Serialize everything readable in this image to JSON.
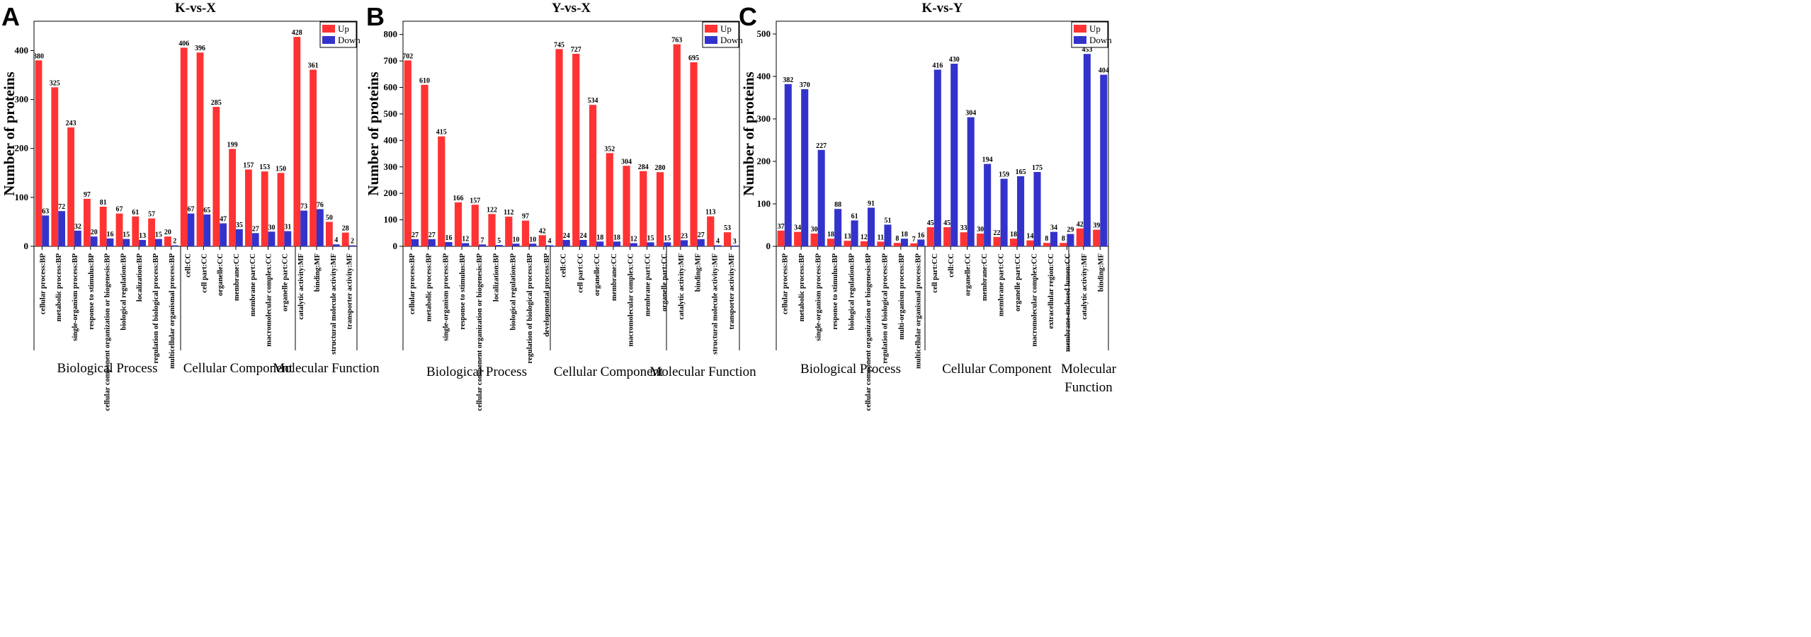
{
  "chart_data": [
    {
      "panel": "A",
      "type": "bar",
      "title": "K-vs-X",
      "ylabel": "Number of proteins",
      "ylim": [
        0,
        460
      ],
      "yticks": [
        0,
        100,
        200,
        300,
        400
      ],
      "legend": {
        "placement": "top-right",
        "entries": [
          {
            "name": "Up",
            "color": "#ff3333"
          },
          {
            "name": "Down",
            "color": "#3333cc"
          }
        ]
      },
      "categories": [
        "cellular process:BP",
        "metabolic process:BP",
        "single-organism process:BP",
        "response to stimulus:BP",
        "cellular component organization or biogenesis:BP",
        "biological regulation:BP",
        "localization:BP",
        "regulation of biological process:BP",
        "multicellular organismal process:BP",
        "cell:CC",
        "cell part:CC",
        "organelle:CC",
        "membrane:CC",
        "membrane part:CC",
        "macromolecular complex:CC",
        "organelle part:CC",
        "catalytic activity:MF",
        "binding:MF",
        "structural molecule activity:MF",
        "transporter activity:MF"
      ],
      "series": [
        {
          "name": "Up",
          "color": "#ff3333",
          "values": [
            380,
            325,
            243,
            97,
            81,
            67,
            61,
            57,
            20,
            406,
            396,
            285,
            199,
            157,
            153,
            150,
            428,
            361,
            50,
            28
          ]
        },
        {
          "name": "Down",
          "color": "#3333cc",
          "values": [
            63,
            72,
            32,
            20,
            16,
            15,
            13,
            15,
            2,
            67,
            65,
            47,
            35,
            27,
            30,
            31,
            73,
            76,
            4,
            2
          ]
        }
      ],
      "groups": [
        {
          "label": "Biological Process",
          "start": 0,
          "end": 8
        },
        {
          "label": "Cellular Component",
          "start": 9,
          "end": 15
        },
        {
          "label": "Molecular Function",
          "start": 16,
          "end": 19
        }
      ]
    },
    {
      "panel": "B",
      "type": "bar",
      "title": "Y-vs-X",
      "ylabel": "Number of proteins",
      "ylim": [
        0,
        850
      ],
      "yticks": [
        0,
        100,
        200,
        300,
        400,
        500,
        600,
        700,
        800
      ],
      "legend": {
        "placement": "top-right",
        "entries": [
          {
            "name": "Up",
            "color": "#ff3333"
          },
          {
            "name": "Down",
            "color": "#3333cc"
          }
        ]
      },
      "categories": [
        "cellular process:BP",
        "metabolic process:BP",
        "single-organism process:BP",
        "response to stimulus:BP",
        "cellular component organization or biogenesis:BP",
        "localization:BP",
        "biological regulation:BP",
        "regulation of biological process:BP",
        "developmental process:BP",
        "cell:CC",
        "cell part:CC",
        "organelle:CC",
        "membrane:CC",
        "macromolecular complex:CC",
        "membrane part:CC",
        "organelle part:CC",
        "catalytic activity:MF",
        "binding:MF",
        "structural molecule activity:MF",
        "transporter activity:MF"
      ],
      "series": [
        {
          "name": "Up",
          "color": "#ff3333",
          "values": [
            702,
            610,
            415,
            166,
            157,
            122,
            112,
            97,
            42,
            745,
            727,
            534,
            352,
            304,
            284,
            280,
            763,
            695,
            113,
            53
          ]
        },
        {
          "name": "Down",
          "color": "#3333cc",
          "values": [
            27,
            27,
            16,
            12,
            7,
            5,
            10,
            10,
            4,
            24,
            24,
            18,
            18,
            12,
            15,
            15,
            23,
            27,
            4,
            3
          ]
        }
      ],
      "groups": [
        {
          "label": "Biological Process",
          "start": 0,
          "end": 8
        },
        {
          "label": "Cellular Component",
          "start": 9,
          "end": 15
        },
        {
          "label": "Molecular Function",
          "start": 16,
          "end": 19
        }
      ]
    },
    {
      "panel": "C",
      "type": "bar",
      "title": "K-vs-Y",
      "ylabel": "Number of proteins",
      "ylim": [
        0,
        530
      ],
      "yticks": [
        0,
        100,
        200,
        300,
        400,
        500
      ],
      "legend": {
        "placement": "top-right",
        "entries": [
          {
            "name": "Up",
            "color": "#ff3333"
          },
          {
            "name": "Down",
            "color": "#3333cc"
          }
        ]
      },
      "categories": [
        "cellular process:BP",
        "metabolic process:BP",
        "single-organism process:BP",
        "response to stimulus:BP",
        "biological regulation:BP",
        "cellular component organization or biogenesis:BP",
        "regulation of biological process:BP",
        "multi-organism process:BP",
        "multicellular organismal process:BP",
        "cell part:CC",
        "cell:CC",
        "organelle:CC",
        "membrane:CC",
        "membrane part:CC",
        "organelle part:CC",
        "macromolecular complex:CC",
        "extracellular region:CC",
        "membrane-enclosed lumen:CC",
        "catalytic activity:MF",
        "binding:MF"
      ],
      "series": [
        {
          "name": "Up",
          "color": "#ff3333",
          "values": [
            37,
            34,
            30,
            18,
            13,
            12,
            11,
            8,
            7,
            45,
            45,
            33,
            30,
            22,
            18,
            14,
            8,
            8,
            42,
            39
          ]
        },
        {
          "name": "Down",
          "color": "#3333cc",
          "values": [
            382,
            370,
            227,
            88,
            61,
            91,
            51,
            18,
            16,
            416,
            430,
            304,
            194,
            159,
            165,
            175,
            34,
            29,
            453,
            404
          ]
        }
      ],
      "groups": [
        {
          "label": "Biological Process",
          "start": 0,
          "end": 8
        },
        {
          "label": "Cellular Component",
          "start": 9,
          "end": 17
        },
        {
          "label": "Molecular Function",
          "start": 18,
          "end": 19
        }
      ]
    }
  ]
}
